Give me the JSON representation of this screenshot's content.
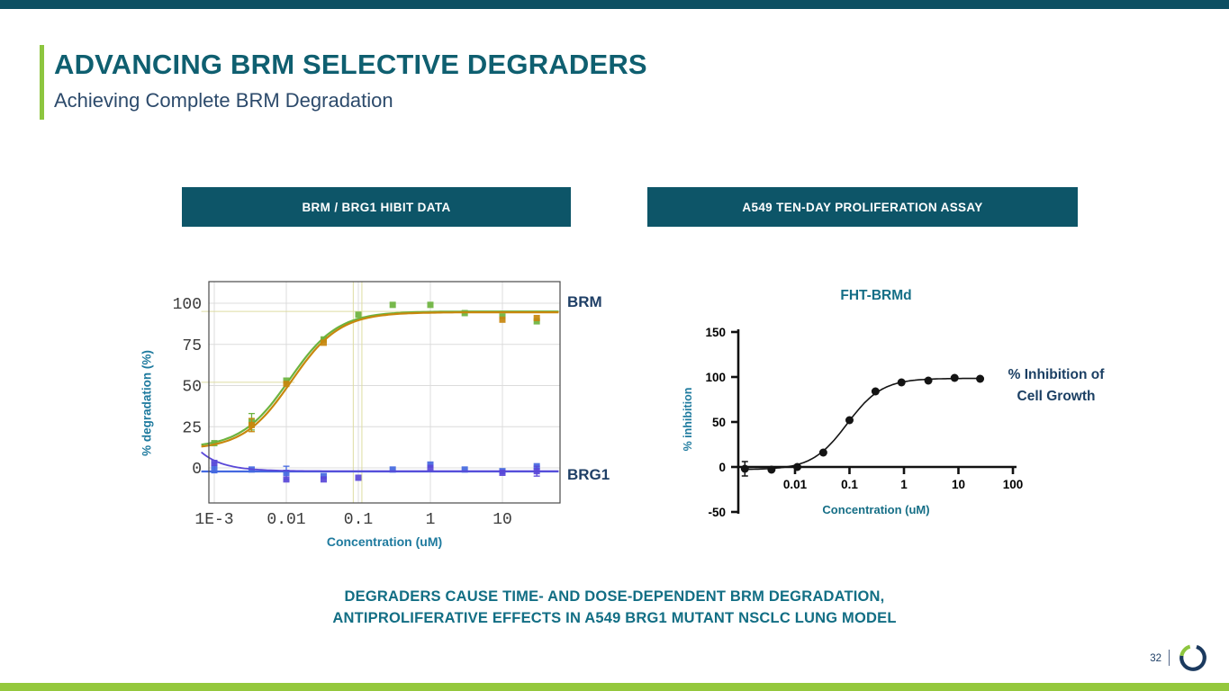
{
  "slide": {
    "title": "ADVANCING BRM SELECTIVE DEGRADERS",
    "subtitle": "Achieving Complete BRM Degradation",
    "page_number": "32"
  },
  "banners": {
    "left": "BRM / BRG1 HIBIT DATA",
    "right": "A549 TEN-DAY PROLIFERATION ASSAY"
  },
  "caption": {
    "line1": "DEGRADERS CAUSE TIME- AND DOSE-DEPENDENT BRM DEGRADATION,",
    "line2": "ANTIPROLIFERATIVE EFFECTS IN A549 BRG1 MUTANT NSCLC LUNG MODEL"
  },
  "colors": {
    "top_bar": "#0d4f62",
    "bottom_bar": "#94c83d",
    "accent_green": "#8dc63f",
    "banner_teal": "#0d5568",
    "title_teal": "#0f5f70",
    "subtitle_navy": "#2c4a6b",
    "caption_teal": "#126e84",
    "axis_label_teal": "#1e7a9e",
    "series_label_navy": "#1f3f66",
    "logo_navy": "#1b3a5f"
  },
  "chart_data": [
    {
      "id": "hibit",
      "type": "scatter",
      "title": "",
      "xlabel": "Concentration (uM)",
      "ylabel": "% degradation (%)",
      "x_scale": "log",
      "x_ticks": [
        "1E-3",
        "0.01",
        "0.1",
        "1",
        "10"
      ],
      "x_tick_logs": [
        -3,
        -2,
        -1,
        0,
        1
      ],
      "y_ticks": [
        0,
        25,
        50,
        75,
        100
      ],
      "xlim_log": [
        -3.18,
        1.8
      ],
      "ylim": [
        -21,
        113
      ],
      "grid": true,
      "series_labels": [
        {
          "text": "BRM",
          "value": 95
        },
        {
          "text": "BRG1",
          "value": -2
        }
      ],
      "reference_lines": {
        "color": "#dedca2",
        "vertical_x": [
          0.085,
          0.112
        ],
        "horizontal": [
          {
            "v": 95,
            "x_from": 0.00066,
            "x_to": 63
          },
          {
            "v": 52,
            "x_from": 0.00066,
            "x_to": 0.013
          }
        ]
      },
      "series": [
        {
          "name": "BRM (green)",
          "color": "#6cb33e",
          "marker": "square",
          "points": [
            [
              0.001,
              15
            ],
            [
              0.0033,
              28
            ],
            [
              0.01,
              53
            ],
            [
              0.033,
              78
            ],
            [
              0.1,
              93
            ],
            [
              0.3,
              99
            ],
            [
              1,
              99
            ],
            [
              3,
              94
            ],
            [
              10,
              92
            ],
            [
              30,
              89
            ]
          ],
          "error_bars": [
            [
              0.0033,
              28,
              5
            ]
          ],
          "fit": {
            "type": "4pl",
            "bottom": 12,
            "top": 95,
            "ec50": 0.011,
            "hill": 1.3
          }
        },
        {
          "name": "BRM (orange)",
          "color": "#c8870d",
          "marker": "square",
          "points": [
            [
              0.0033,
              26
            ],
            [
              0.01,
              51
            ],
            [
              0.033,
              76
            ],
            [
              10,
              90
            ],
            [
              30,
              91
            ]
          ],
          "error_bars": [
            [
              0.0033,
              26,
              4
            ]
          ],
          "fit": {
            "type": "4pl",
            "bottom": 11,
            "top": 94.5,
            "ec50": 0.0118,
            "hill": 1.3
          }
        },
        {
          "name": "BRG1 (blue)",
          "color": "#4468e0",
          "marker": "square",
          "points": [
            [
              0.001,
              0
            ],
            [
              0.0033,
              -1
            ],
            [
              0.01,
              -3
            ],
            [
              0.033,
              -5
            ],
            [
              0.3,
              -1
            ],
            [
              1,
              2
            ],
            [
              3,
              -1
            ],
            [
              10,
              -2
            ],
            [
              30,
              1
            ]
          ],
          "error_bars": [
            [
              0.001,
              0,
              3
            ],
            [
              0.01,
              -3,
              4
            ]
          ],
          "fit": {
            "type": "flat",
            "value": -2.2
          }
        },
        {
          "name": "BRG1 (purple)",
          "color": "#5a48d8",
          "marker": "square",
          "points": [
            [
              0.001,
              3
            ],
            [
              0.01,
              -7
            ],
            [
              0.033,
              -7
            ],
            [
              0.1,
              -6
            ],
            [
              1,
              0
            ],
            [
              10,
              -3
            ],
            [
              30,
              -2
            ]
          ],
          "error_bars": [
            [
              30,
              -2,
              3
            ]
          ],
          "fit": {
            "type": "decay",
            "base": -2,
            "amp": 11.5,
            "k": 3.2,
            "start": -3.18
          }
        }
      ]
    },
    {
      "id": "proliferation",
      "type": "scatter",
      "title": "FHT-BRMd",
      "xlabel": "Concentration (uM)",
      "ylabel": "% inhibition",
      "annotation_lines": [
        "% Inhibition of",
        "Cell Growth"
      ],
      "x_scale": "log",
      "x_ticks": [
        "0.01",
        "0.1",
        "1",
        "10",
        "100"
      ],
      "x_tick_logs": [
        -2,
        -1,
        0,
        1,
        2
      ],
      "y_ticks": [
        -50,
        0,
        50,
        100,
        150
      ],
      "xlim_log": [
        -2.96,
        1.42
      ],
      "ylim": [
        -50,
        150
      ],
      "grid": false,
      "series": [
        {
          "name": "FHT-BRMd",
          "color": "#141414",
          "marker": "circle",
          "points": [
            [
              0.0012,
              -2
            ],
            [
              0.0037,
              -3
            ],
            [
              0.011,
              0
            ],
            [
              0.033,
              16
            ],
            [
              0.1,
              52
            ],
            [
              0.3,
              84
            ],
            [
              0.9,
              94
            ],
            [
              2.8,
              96
            ],
            [
              8.5,
              99
            ],
            [
              25,
              98
            ]
          ],
          "error_bars": [
            [
              0.0012,
              -2,
              8
            ]
          ],
          "fit": {
            "type": "4pl",
            "bottom": -3,
            "top": 98.5,
            "ec50": 0.09,
            "hill": 1.35
          }
        }
      ]
    }
  ]
}
